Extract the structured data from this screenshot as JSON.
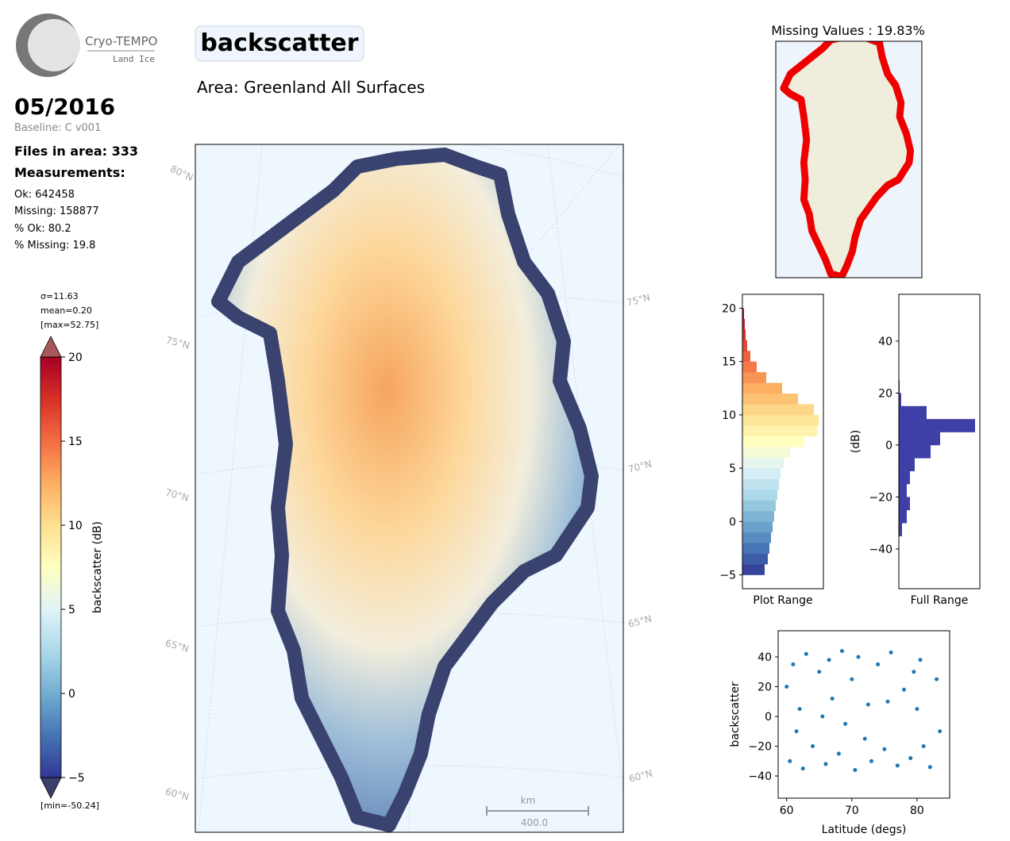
{
  "logo": {
    "name": "Cryo-TEMPO",
    "subtitle": "Land Ice"
  },
  "header": {
    "title": "backscatter",
    "area": "Area: Greenland All Surfaces",
    "date": "05/2016",
    "baseline": "Baseline: C v001"
  },
  "stats": {
    "files": "Files in area: 333",
    "measurements": "Measurements:",
    "ok": "Ok: 642458",
    "missing": "Missing: 158877",
    "pct_ok": "% Ok: 80.2",
    "pct_missing": "% Missing: 19.8"
  },
  "map": {
    "lat_labels_left": [
      "80°N",
      "75°N",
      "70°N",
      "65°N",
      "60°N"
    ],
    "lat_labels_right": [
      "75°N",
      "70°N",
      "65°N",
      "60°N"
    ],
    "scale_unit": "km",
    "scale_label": "400.0"
  },
  "missing_map": {
    "title": "Missing Values : 19.83%"
  },
  "chart_data": [
    {
      "type": "colorbar",
      "label": "backscatter (dB)",
      "annotations": [
        "σ=11.63",
        "mean=0.20",
        "[max=52.75]",
        "[min=-50.24]"
      ],
      "ylim": [
        -5,
        20
      ],
      "yticks": [
        {
          "value": -5,
          "label": "−5"
        },
        0,
        5,
        10,
        15,
        20
      ],
      "colors": [
        "#313695",
        "#4575b4",
        "#74add1",
        "#abd9e9",
        "#e0f3f8",
        "#ffffbf",
        "#fee090",
        "#fdae61",
        "#f46d43",
        "#d73027",
        "#a50026"
      ],
      "extend_colors": [
        "#3b3f6e",
        "#a85858"
      ]
    },
    {
      "type": "histogram",
      "orientation": "horizontal",
      "xlabel": "Plot Range",
      "bins": [
        -5,
        -4,
        -3,
        -2,
        -1,
        0,
        1,
        2,
        3,
        4,
        5,
        6,
        7,
        8,
        9,
        10,
        11,
        12,
        13,
        14,
        15,
        16,
        17,
        18,
        19,
        20
      ],
      "values": [
        28,
        32,
        34,
        36,
        38,
        40,
        42,
        44,
        46,
        48,
        52,
        60,
        78,
        94,
        96,
        90,
        70,
        50,
        30,
        18,
        10,
        6,
        4,
        3,
        2
      ],
      "xlim": [
        0,
        102
      ],
      "ylim": [
        -6.3,
        21.3
      ],
      "yticks": [
        {
          "value": -5,
          "label": "−5"
        },
        0,
        5,
        10,
        15,
        20
      ],
      "color_by_value": true
    },
    {
      "type": "histogram",
      "orientation": "horizontal",
      "xlabel": "Full Range",
      "ylabel": "(dB)",
      "bins": [
        -35,
        -30,
        -25,
        -20,
        -15,
        -10,
        -5,
        0,
        5,
        10,
        15,
        20,
        25
      ],
      "values": [
        4,
        10,
        14,
        10,
        14,
        20,
        40,
        52,
        96,
        35,
        3,
        1
      ],
      "xlim": [
        0,
        102
      ],
      "ylim": [
        -55.3,
        58
      ],
      "yticks": [
        {
          "value": -40,
          "label": "−40"
        },
        {
          "value": -20,
          "label": "−20"
        },
        0,
        20,
        40
      ],
      "color": "#3f3fa8"
    },
    {
      "type": "scatter",
      "xlabel": "Latitude (degs)",
      "ylabel": "backscatter",
      "color": "#1f77b4",
      "x": [
        60,
        60.5,
        61,
        61.5,
        62,
        62.5,
        63,
        64,
        65,
        65.5,
        66,
        66.5,
        67,
        68,
        68.5,
        69,
        70,
        70.5,
        71,
        72,
        72.5,
        73,
        74,
        75,
        75.5,
        76,
        77,
        78,
        79,
        79.5,
        80,
        80.5,
        81,
        82,
        83,
        83.5
      ],
      "y": [
        20,
        -30,
        35,
        -10,
        5,
        -35,
        42,
        -20,
        30,
        0,
        -32,
        38,
        12,
        -25,
        44,
        -5,
        25,
        -36,
        40,
        -15,
        8,
        -30,
        35,
        -22,
        10,
        43,
        -33,
        18,
        -28,
        30,
        5,
        38,
        -20,
        -34,
        25,
        -10
      ],
      "xlim": [
        58.7,
        85
      ],
      "ylim": [
        -54.9,
        57.6
      ],
      "xticks": [
        60,
        70,
        80
      ],
      "yticks": [
        {
          "value": -40,
          "label": "−40"
        },
        {
          "value": -20,
          "label": "−20"
        },
        0,
        20,
        40
      ]
    }
  ]
}
